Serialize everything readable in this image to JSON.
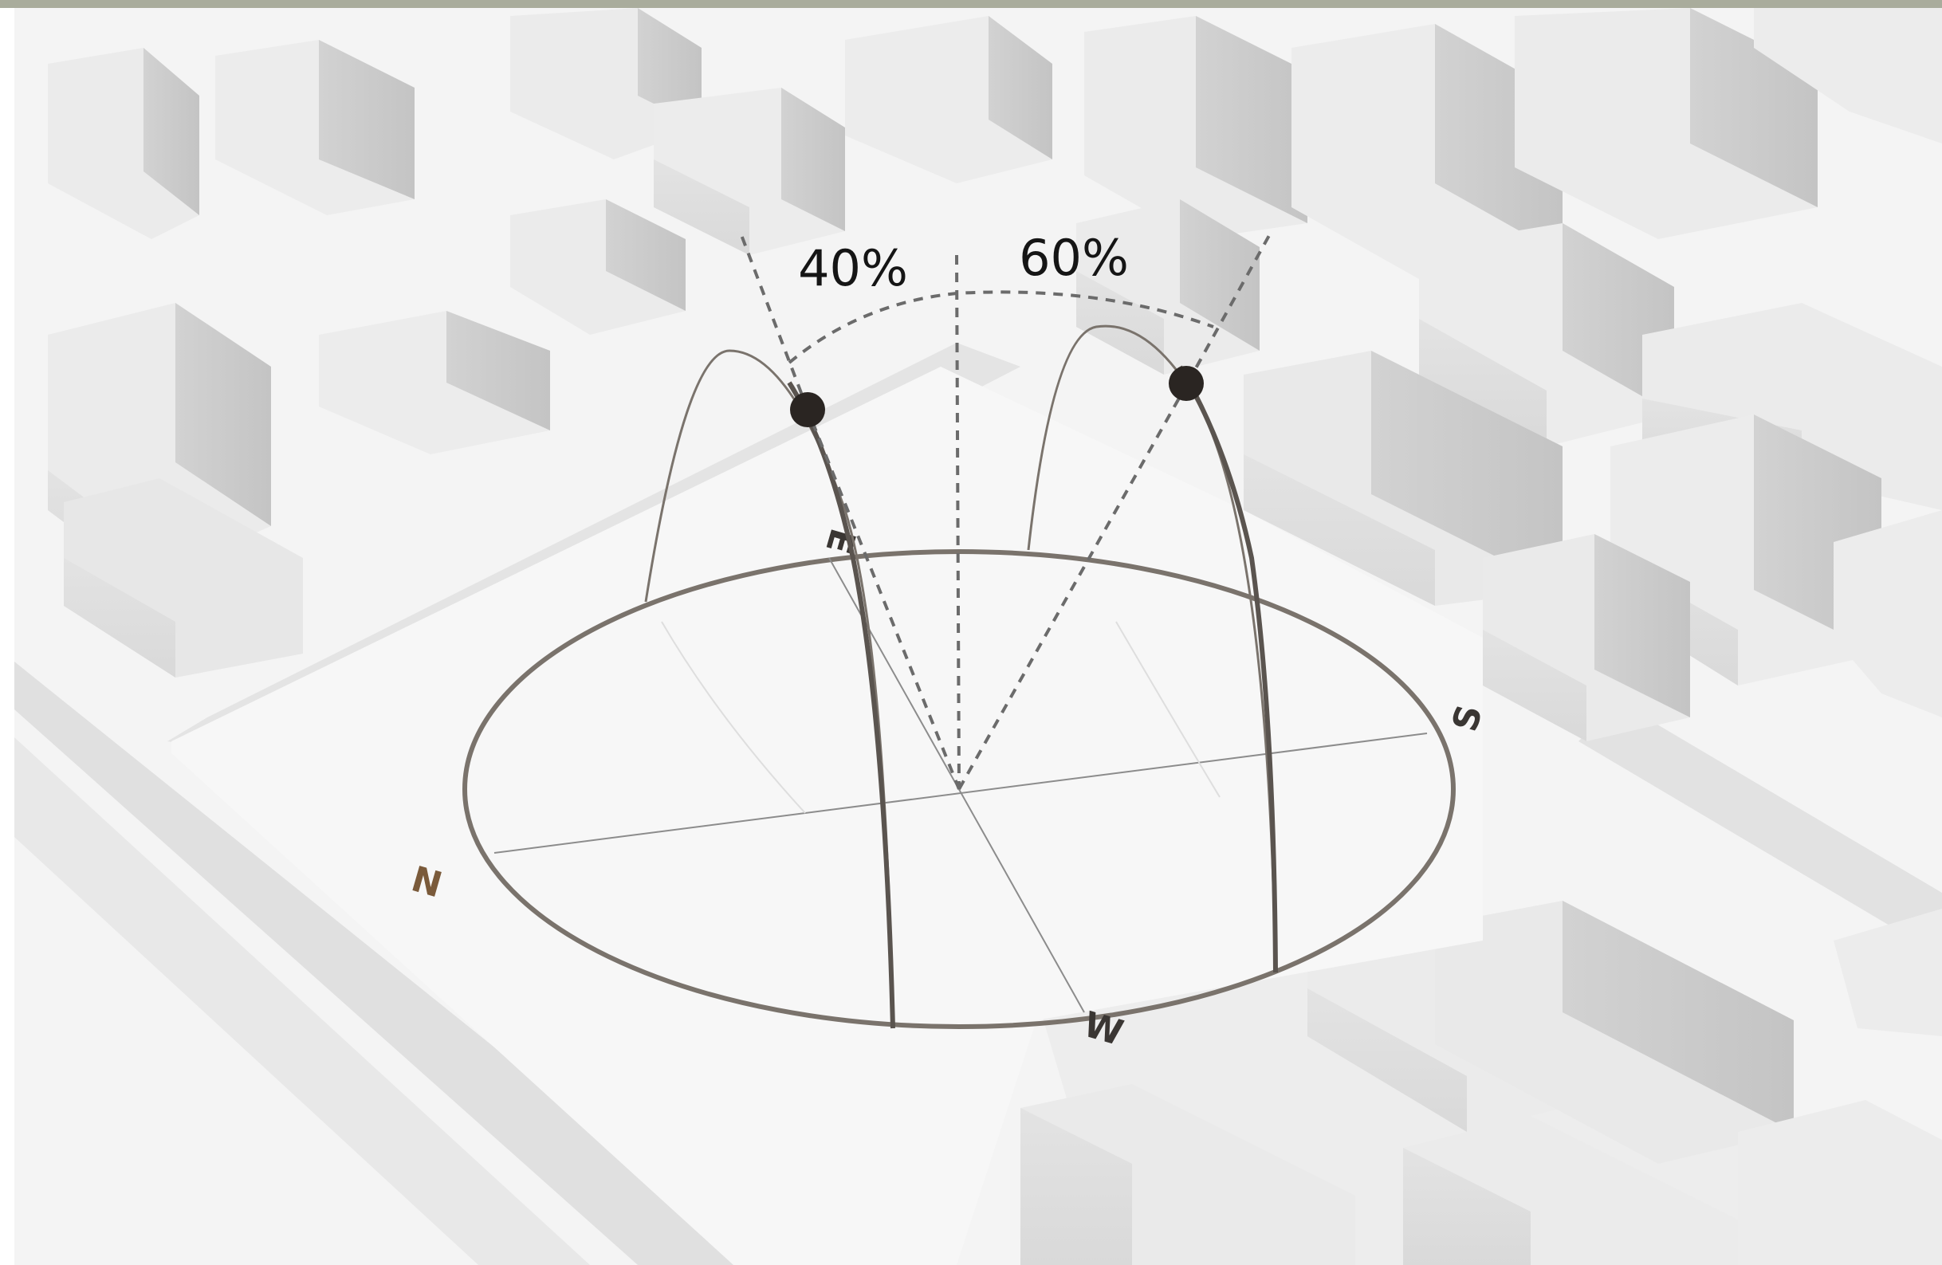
{
  "diagram": {
    "sun_path_left": {
      "label": "40%",
      "share": 0.4
    },
    "sun_path_right": {
      "label": "60%",
      "share": 0.6
    },
    "compass": {
      "north": "N",
      "east": "E",
      "south": "S",
      "west": "W"
    },
    "colors": {
      "background": "#f4f4f4",
      "building_top": "#ececec",
      "building_side": "#cfcfcf",
      "building_front": "#dedede",
      "road": "#e2e2e2",
      "ring": "#7a736c",
      "north_label": "#7a5a3a",
      "sun_marker": "#2a2522",
      "dashed": "#6b6b6b"
    }
  }
}
